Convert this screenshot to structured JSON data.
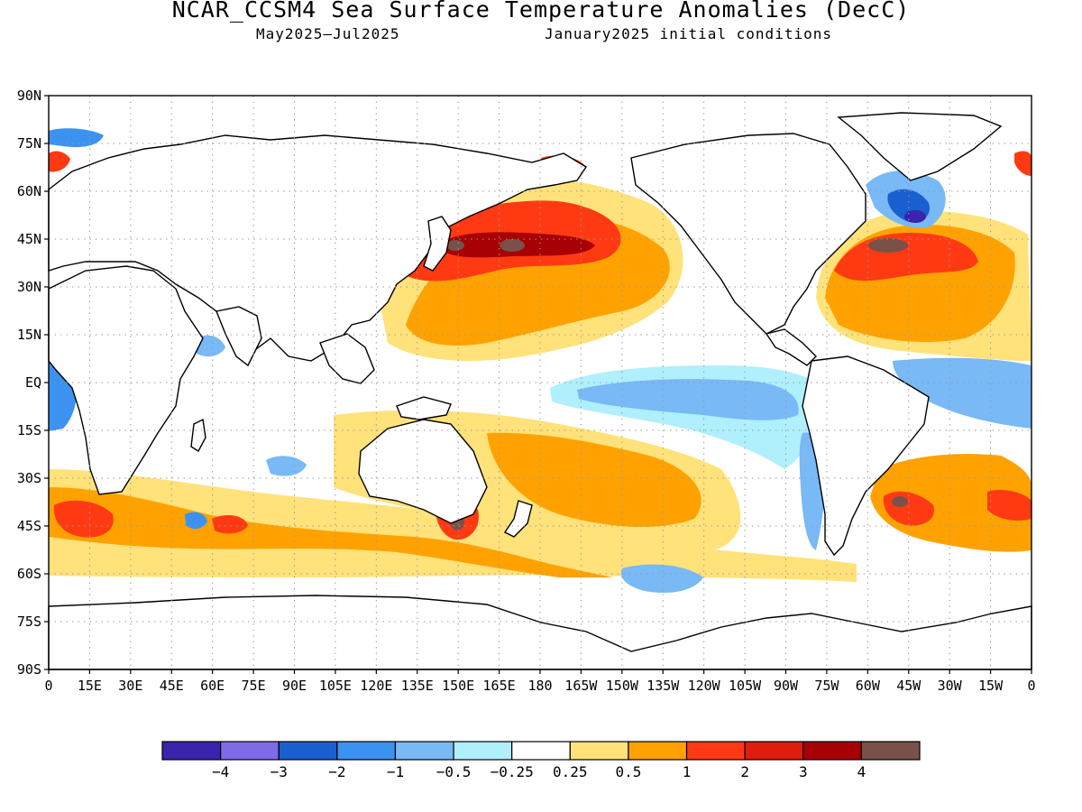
{
  "title": "NCAR_CCSM4 Sea Surface Temperature Anomalies (DecC)",
  "subtitle_left": "May2025–Jul2025",
  "subtitle_right": "January2025 initial conditions",
  "map": {
    "lat_labels": [
      "90N",
      "75N",
      "60N",
      "45N",
      "30N",
      "15N",
      "EQ",
      "15S",
      "30S",
      "45S",
      "60S",
      "75S",
      "90S"
    ],
    "lon_labels": [
      "0",
      "15E",
      "30E",
      "45E",
      "60E",
      "75E",
      "90E",
      "105E",
      "120E",
      "135E",
      "150E",
      "165E",
      "180",
      "165W",
      "150W",
      "135W",
      "120W",
      "105W",
      "90W",
      "75W",
      "60W",
      "45W",
      "30W",
      "15W",
      "0"
    ],
    "grid": "dotted",
    "colors": {
      "ocean_neutral": "#ffffff",
      "coastline": "#000000"
    }
  },
  "legend": {
    "colors": [
      "#3a23ad",
      "#7e6be8",
      "#1a5fcf",
      "#3c92f0",
      "#78b9f6",
      "#b0effc",
      "#ffffff",
      "#ffe27a",
      "#ffa200",
      "#ff3a13",
      "#e01c0c",
      "#a70005",
      "#795148"
    ],
    "labels": [
      "−4",
      "−3",
      "−2",
      "−1",
      "−0.5",
      "−0.25",
      "0.25",
      "0.5",
      "1",
      "2",
      "3",
      "4"
    ]
  }
}
